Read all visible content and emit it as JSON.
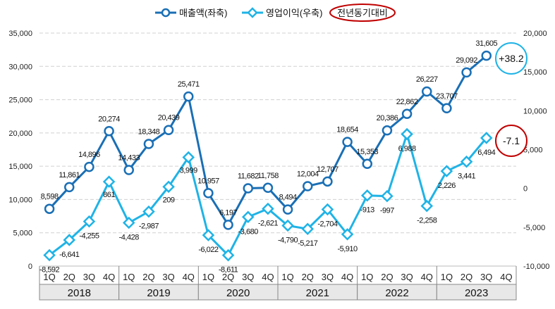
{
  "chart_data": {
    "type": "line",
    "categories": [
      "1Q",
      "2Q",
      "3Q",
      "4Q",
      "1Q",
      "2Q",
      "3Q",
      "4Q",
      "1Q",
      "2Q",
      "3Q",
      "4Q",
      "1Q",
      "2Q",
      "3Q",
      "4Q",
      "1Q",
      "2Q",
      "3Q",
      "4Q",
      "1Q",
      "2Q",
      "3Q",
      "4Q"
    ],
    "years": [
      "2018",
      "2019",
      "2020",
      "2021",
      "2022",
      "2023"
    ],
    "series": [
      {
        "name": "매출액(좌축)",
        "axis": "left",
        "color": "#1a6fb5",
        "marker": "circle",
        "values": [
          8598,
          11861,
          14896,
          20274,
          14433,
          18348,
          20439,
          25471,
          10957,
          6197,
          11682,
          11758,
          8494,
          12004,
          12707,
          18654,
          15353,
          20386,
          22862,
          26227,
          23707,
          29092,
          31605,
          null
        ],
        "labels": [
          "8,598",
          "11,861",
          "14,896",
          "20,274",
          "14,433",
          "18,348",
          "20,439",
          "25,471",
          "10,957",
          "6,197",
          "11,682",
          "11,758",
          "8,494",
          "12,004",
          "12,707",
          "18,654",
          "15,353",
          "20,386",
          "22,862",
          "26,227",
          "23,707",
          "29,092",
          "31,605",
          ""
        ]
      },
      {
        "name": "영업이익(우축)",
        "axis": "right",
        "color": "#1fb3e6",
        "marker": "diamond",
        "values": [
          -8592,
          -6641,
          -4255,
          861,
          -4428,
          -2987,
          209,
          3999,
          -6022,
          -8611,
          -3680,
          -2621,
          -4790,
          -5217,
          -2704,
          -5910,
          -913,
          -997,
          6988,
          -2258,
          2226,
          3441,
          6494,
          null
        ],
        "labels": [
          "-8,592",
          "-6,641",
          "-4,255",
          "861",
          "-4,428",
          "-2,987",
          "209",
          "3,999",
          "-6,022",
          "-8,611",
          "-3,680",
          "-2,621",
          "-4,790",
          "-5,217",
          "-2,704",
          "-5,910",
          "-913",
          "-997",
          "6,988",
          "-2,258",
          "2,226",
          "3,441",
          "6,494",
          ""
        ]
      }
    ],
    "left_axis": {
      "ylim": [
        0,
        35000
      ],
      "ticks": [
        "0",
        "5,000",
        "10,000",
        "15,000",
        "20,000",
        "25,000",
        "30,000",
        "35,000"
      ]
    },
    "right_axis": {
      "ylim": [
        -10000,
        20000
      ],
      "ticks": [
        "-10,000",
        "-5,000",
        "0",
        "5,000",
        "10,000",
        "15,000",
        "20,000"
      ]
    },
    "legend": {
      "placement": "top",
      "items": [
        "매출액(좌축)",
        "영업이익(우축)",
        "전년동기대비"
      ]
    },
    "annotations": [
      {
        "text": "+38.2",
        "series": "매출액(좌축)",
        "color": "#1fb3e6"
      },
      {
        "text": "-7.1",
        "series": "영업이익(우축)",
        "color": "#c00000"
      }
    ],
    "grid": true
  }
}
